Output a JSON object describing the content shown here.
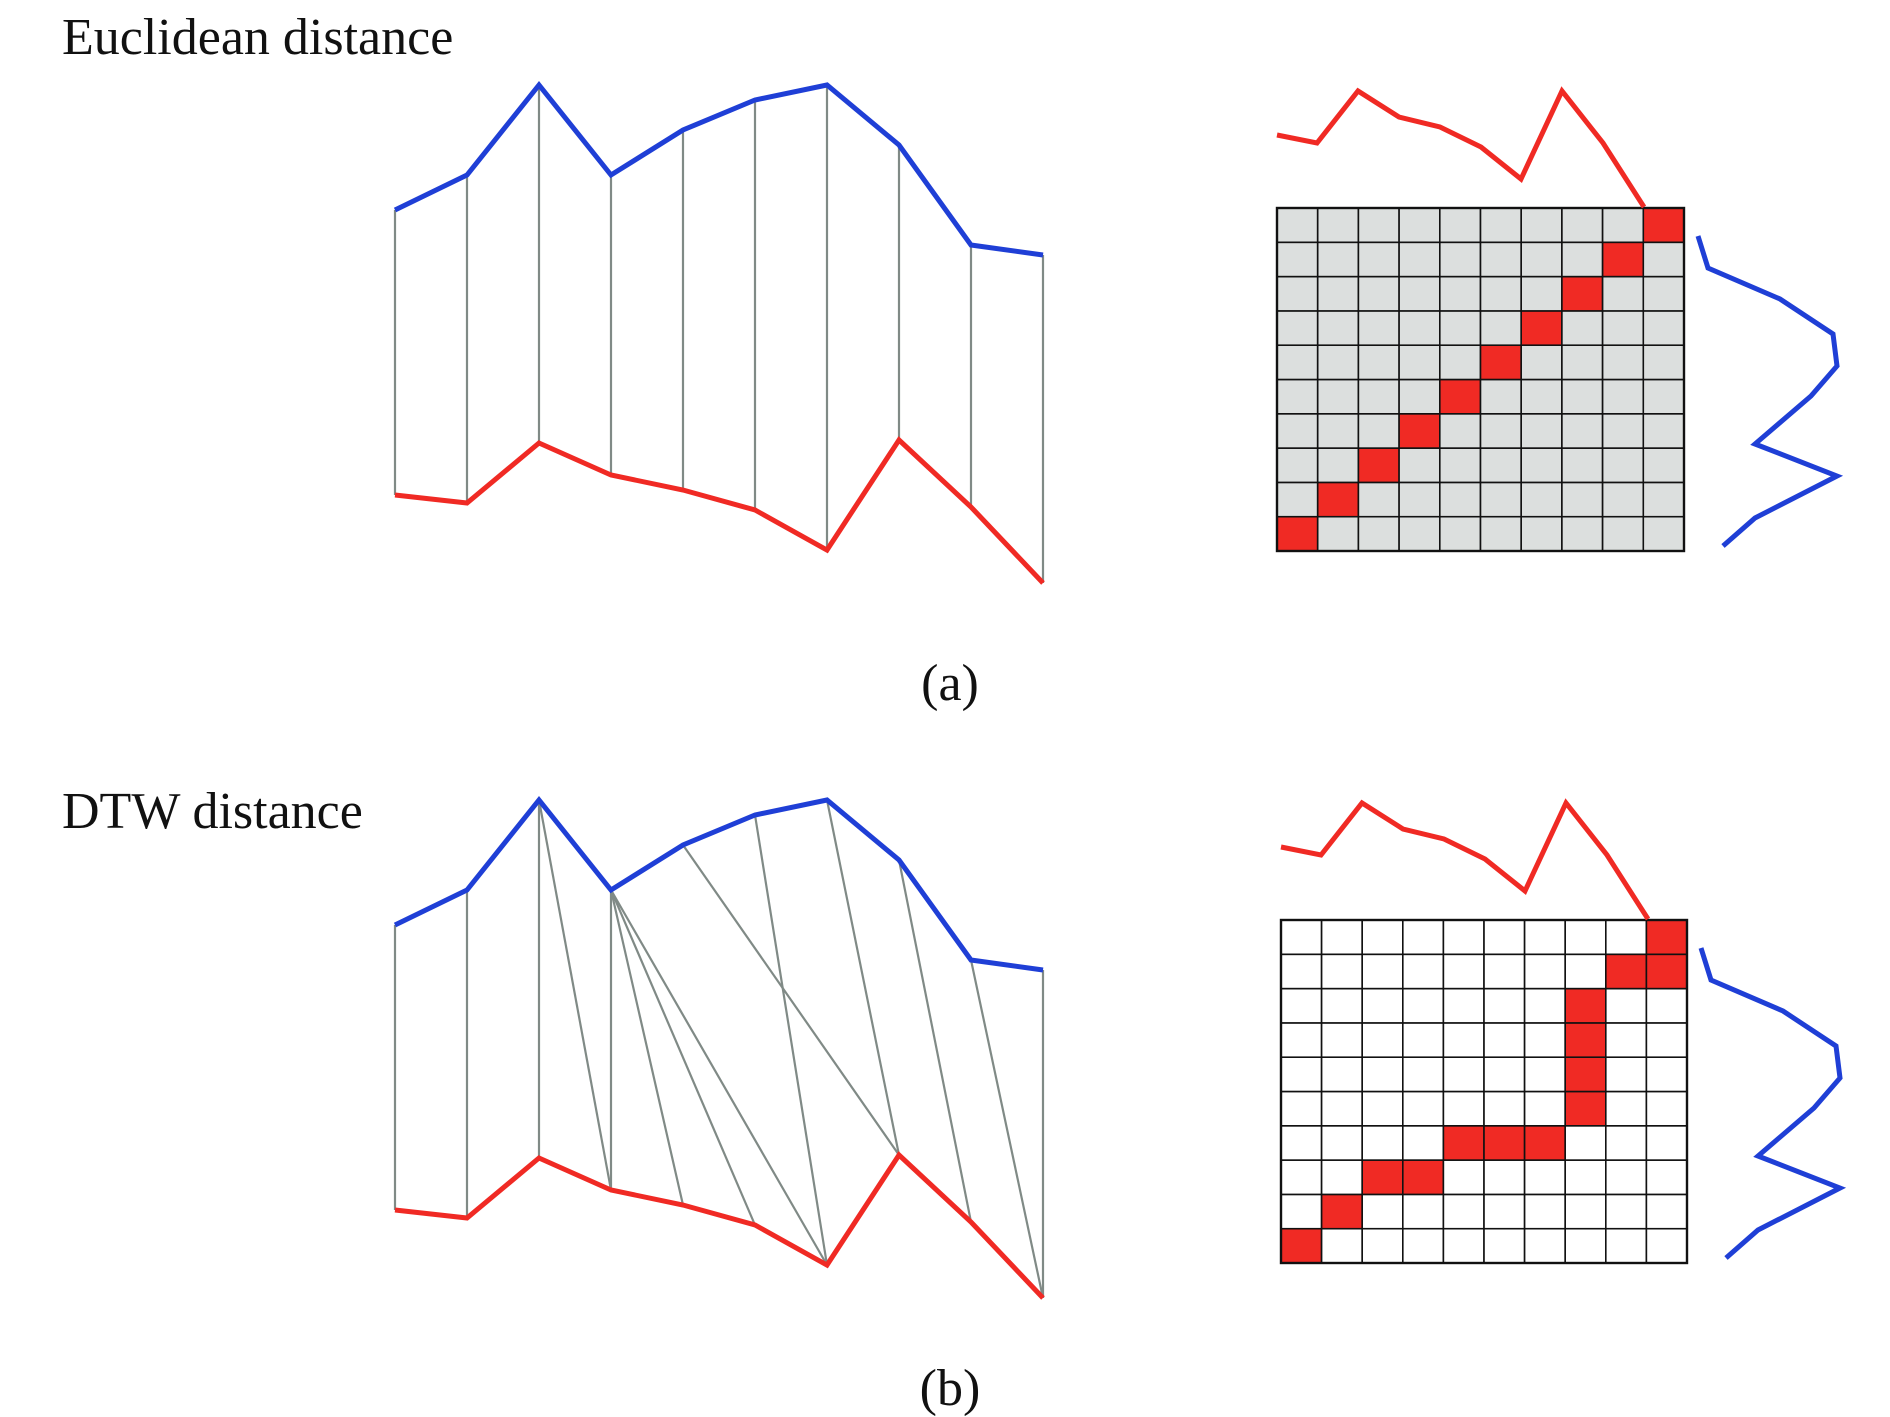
{
  "colors": {
    "series_a": "#1f3fd6",
    "series_b": "#f02a24",
    "connector": "#808a86",
    "matrix_cell_euclidean": "#dcdfde",
    "matrix_cell_dtw": "#ffffff",
    "matrix_path": "#f02a24",
    "matrix_grid": "#111111"
  },
  "panels": [
    {
      "id": "a",
      "title": "Euclidean distance",
      "caption": "(a)",
      "alignment": [
        [
          0,
          0
        ],
        [
          1,
          1
        ],
        [
          2,
          2
        ],
        [
          3,
          3
        ],
        [
          4,
          4
        ],
        [
          5,
          5
        ],
        [
          6,
          6
        ],
        [
          7,
          7
        ],
        [
          8,
          8
        ],
        [
          9,
          9
        ]
      ],
      "matrix": {
        "rows": 10,
        "cols": 10,
        "path_cells": [
          [
            0,
            0
          ],
          [
            1,
            1
          ],
          [
            2,
            2
          ],
          [
            3,
            3
          ],
          [
            4,
            4
          ],
          [
            5,
            5
          ],
          [
            6,
            6
          ],
          [
            7,
            7
          ],
          [
            8,
            8
          ],
          [
            9,
            9
          ]
        ]
      }
    },
    {
      "id": "b",
      "title": "DTW distance",
      "caption": "(b)",
      "alignment": [
        [
          0,
          0
        ],
        [
          1,
          1
        ],
        [
          2,
          2
        ],
        [
          2,
          3
        ],
        [
          3,
          3
        ],
        [
          3,
          4
        ],
        [
          3,
          5
        ],
        [
          3,
          6
        ],
        [
          4,
          7
        ],
        [
          5,
          6
        ],
        [
          6,
          7
        ],
        [
          7,
          8
        ],
        [
          8,
          9
        ],
        [
          9,
          9
        ]
      ],
      "matrix": {
        "rows": 10,
        "cols": 10,
        "path_cells": [
          [
            0,
            0
          ],
          [
            1,
            1
          ],
          [
            2,
            2
          ],
          [
            3,
            2
          ],
          [
            4,
            3
          ],
          [
            5,
            3
          ],
          [
            6,
            3
          ],
          [
            7,
            4
          ],
          [
            7,
            5
          ],
          [
            7,
            6
          ],
          [
            7,
            7
          ],
          [
            8,
            8
          ],
          [
            9,
            8
          ],
          [
            9,
            9
          ]
        ]
      }
    }
  ]
}
